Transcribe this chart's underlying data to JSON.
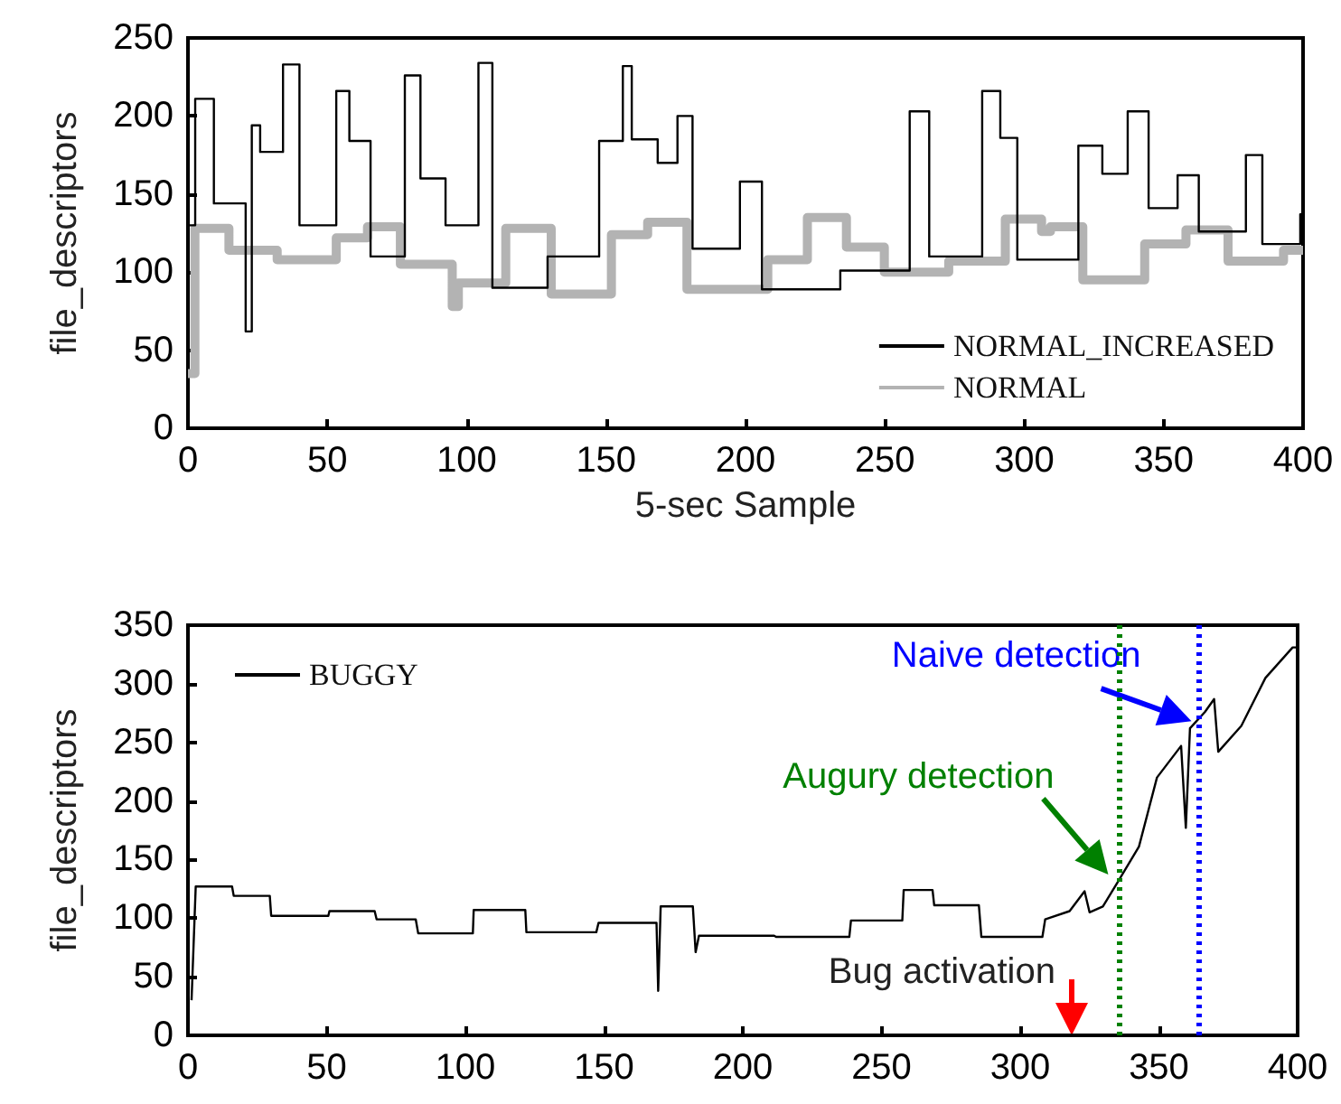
{
  "chart_data": [
    {
      "type": "line",
      "xlabel": "5-sec Sample",
      "ylabel": "file_descriptors",
      "xlim": [
        0,
        400
      ],
      "xticks": [
        0,
        50,
        100,
        150,
        200,
        250,
        300,
        350,
        400
      ],
      "ylim": [
        0,
        250
      ],
      "yticks": [
        0,
        50,
        100,
        150,
        200,
        250
      ],
      "grid": false,
      "legend": "bottom right",
      "series": [
        {
          "name": "NORMAL_INCREASED",
          "type": "step",
          "color": "#000000",
          "x": [
            0,
            2.6,
            9.3,
            20.7,
            22.9,
            25.9,
            34.1,
            40,
            53.2,
            57.9,
            65.5,
            77.8,
            83.4,
            92.4,
            104.2,
            109.2,
            129,
            147.5,
            156,
            159.2,
            168.5,
            175.6,
            181,
            198,
            205.9,
            234,
            258.9,
            265.9,
            284.9,
            291.4,
            297.5,
            319.4,
            328,
            337.1,
            344.6,
            355,
            362.6,
            379.5,
            385.4,
            399,
            400
          ],
          "values": [
            130,
            211,
            144,
            62,
            194,
            177,
            233,
            130,
            216,
            184,
            110,
            226,
            160,
            130,
            234,
            90,
            110,
            184,
            232,
            185,
            170,
            200,
            115,
            158,
            89,
            101,
            203,
            110,
            216,
            186,
            108,
            181,
            163,
            203,
            141,
            162,
            126,
            175,
            118,
            137,
            137
          ]
        },
        {
          "name": "NORMAL",
          "type": "step",
          "color": "#b3b3b3",
          "x": [
            0,
            2.5,
            14.7,
            32,
            53.2,
            64.4,
            76.2,
            94.8,
            97,
            114,
            130.3,
            151.9,
            164.9,
            179,
            208,
            222.2,
            236.2,
            249.8,
            272.9,
            293.2,
            306.2,
            309.4,
            321,
            343.2,
            358,
            373.1,
            393,
            400
          ],
          "values": [
            35,
            128,
            114,
            108,
            122,
            129,
            105,
            78,
            93,
            128,
            86,
            124,
            132,
            89,
            108,
            135,
            116,
            100,
            107,
            134,
            126,
            129,
            95,
            118,
            127,
            107,
            114,
            114
          ]
        }
      ]
    },
    {
      "type": "line",
      "ylabel": "file_descriptors",
      "xlim": [
        0,
        400
      ],
      "xticks": [
        0,
        50,
        100,
        150,
        200,
        250,
        300,
        350,
        400
      ],
      "ylim": [
        0,
        350
      ],
      "yticks": [
        0,
        50,
        100,
        150,
        200,
        250,
        300,
        350
      ],
      "grid": false,
      "legend": "top left",
      "series": [
        {
          "name": "BUGGY",
          "color": "#000000",
          "x": [
            1.3,
            2.8,
            15.9,
            16.5,
            29.5,
            30,
            50.6,
            51,
            67.3,
            68,
            82.1,
            83,
            102.7,
            103,
            121.6,
            122,
            147.2,
            148,
            168.9,
            169.5,
            170.4,
            182,
            183,
            184.2,
            211.3,
            212,
            238.4,
            239,
            257.5,
            258,
            268.4,
            269,
            285.1,
            286,
            308,
            309,
            317.8,
            323.2,
            325,
            329.8,
            335.2,
            342.8,
            349.3,
            358,
            359.7,
            361.2,
            366.6,
            369.9,
            371.4,
            379.7,
            388.4,
            398.2,
            400
          ],
          "values": [
            30,
            127,
            127,
            119,
            119,
            102,
            102,
            106,
            106,
            99,
            99,
            87,
            87,
            107,
            107,
            88,
            88,
            96,
            96,
            38,
            110,
            110,
            71,
            85,
            85,
            84,
            84,
            98,
            98,
            124,
            124,
            111,
            111,
            84,
            84,
            99,
            106,
            123,
            105,
            110,
            131,
            161,
            220,
            247,
            177,
            262,
            276,
            287,
            242,
            264,
            305,
            331,
            331
          ]
        }
      ],
      "ref_lines": [
        {
          "axis": "x",
          "value": 335.5,
          "color": "#008000",
          "line_style": "dotted"
        },
        {
          "axis": "x",
          "value": 364.4,
          "color": "#0000ff",
          "line_style": "dotted"
        }
      ],
      "annotations": [
        {
          "text": "Naive detection",
          "x": 365,
          "y": 262
        },
        {
          "text": "Augury detection",
          "x": 335,
          "y": 131
        },
        "Bug activation"
      ]
    }
  ]
}
